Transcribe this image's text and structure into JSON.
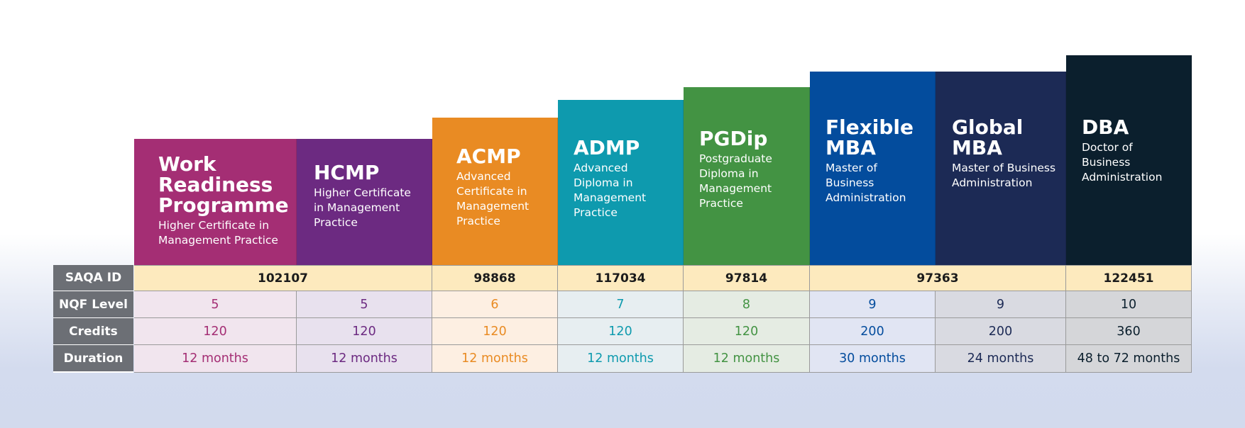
{
  "colors": {
    "wrp": "#a42e74",
    "hcmp": "#6c2a81",
    "acmp": "#e98b23",
    "admp": "#0e9aae",
    "pgdip": "#439343",
    "flexible_mba": "#034c9d",
    "global_mba": "#1c2a55",
    "dba": "#0b1f2d"
  },
  "programmes": [
    {
      "title": "Work Readiness Programme",
      "subtitle": "Higher Certificate in Management Practice"
    },
    {
      "title": "HCMP",
      "subtitle": "Higher Certificate in Management Practice"
    },
    {
      "title": "ACMP",
      "subtitle": "Advanced Certificate in Management Practice"
    },
    {
      "title": "ADMP",
      "subtitle": "Advanced Diploma in Management Practice"
    },
    {
      "title": "PGDip",
      "subtitle": "Postgraduate Diploma in Management Practice"
    },
    {
      "title": "Flexible MBA",
      "subtitle": "Master of Business Administration"
    },
    {
      "title": "Global MBA",
      "subtitle": "Master of Business Administration"
    },
    {
      "title": "DBA",
      "subtitle": "Doctor of Business Administration"
    }
  ],
  "row_labels": {
    "saqa": "SAQA ID",
    "nqf": "NQF Level",
    "credits": "Credits",
    "duration": "Duration"
  },
  "saqa_ids": [
    "102107",
    "98868",
    "117034",
    "97814",
    "97363",
    "122451"
  ],
  "nqf_levels": [
    "5",
    "5",
    "6",
    "7",
    "8",
    "9",
    "9",
    "10"
  ],
  "credits": [
    "120",
    "120",
    "120",
    "120",
    "120",
    "200",
    "200",
    "360"
  ],
  "durations": [
    "12 months",
    "12 months",
    "12 months",
    "12 months",
    "12 months",
    "30 months",
    "24 months",
    "48 to 72 months"
  ]
}
